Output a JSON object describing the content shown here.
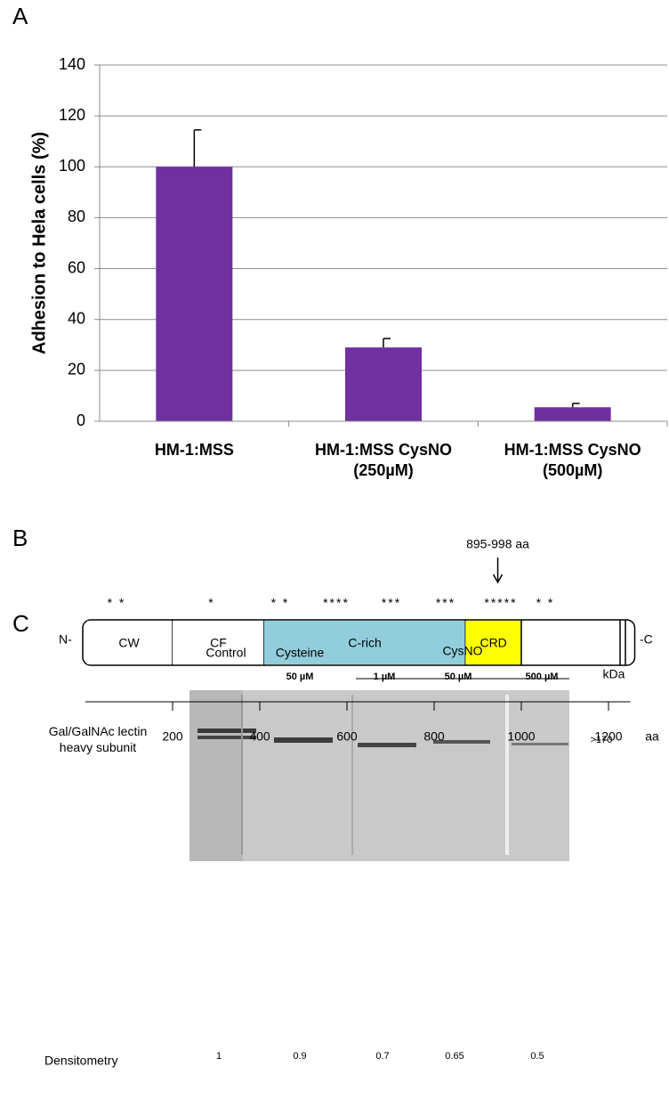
{
  "panel_labels": [
    "A",
    "B",
    "C"
  ],
  "chart_data": {
    "type": "bar",
    "ylabel": "Adhesion to Hela cells (%)",
    "categories": [
      "HM-1:MSS",
      "HM-1:MSS CysNO\n(250µM)",
      "HM-1:MSS CysNO\n(500µM)"
    ],
    "values": [
      100,
      29,
      5.5
    ],
    "errors": [
      14.5,
      3.5,
      1.5
    ],
    "color": "#7030a0",
    "ylim": [
      0,
      140
    ],
    "yticks": [
      0,
      20,
      40,
      60,
      80,
      100,
      120,
      140
    ],
    "grid": true
  },
  "protein_map": {
    "n_label": "N-",
    "c_label": "-C",
    "axis_unit": "aa",
    "xlim": [
      0,
      1250
    ],
    "xticks": [
      200,
      400,
      600,
      800,
      1000,
      1200
    ],
    "annotation": "895-998 aa",
    "annotation_at": 946,
    "domains": [
      {
        "label": "CW",
        "start": 0,
        "end": 200,
        "color": "#ffffff"
      },
      {
        "label": "CF",
        "start": 200,
        "end": 410,
        "color": "#ffffff"
      },
      {
        "label": "C-rich",
        "start": 410,
        "end": 872,
        "color": "#92cddc"
      },
      {
        "label": "CRD",
        "start": 872,
        "end": 1000,
        "color": "#ffff00"
      }
    ],
    "cysteine_clusters": [
      "* *",
      "*",
      "* *",
      "****",
      "***",
      "***",
      "*****",
      "* *"
    ]
  },
  "blot": {
    "group_label": "CysNO",
    "unit_label": "kDa",
    "size_label": ">170",
    "band_label": "Gal/GalNAc lectin\nheavy subunit",
    "densitometry_label": "Densitometry",
    "lanes": [
      {
        "label": "Control",
        "densitometry": 1
      },
      {
        "label": "Cysteine",
        "dose": "50 µM",
        "densitometry": 0.9
      },
      {
        "dose": "1 µM",
        "densitometry": 0.7
      },
      {
        "dose": "50 µM",
        "densitometry": 0.65
      },
      {
        "dose": "500 µM",
        "densitometry": 0.5
      }
    ]
  }
}
